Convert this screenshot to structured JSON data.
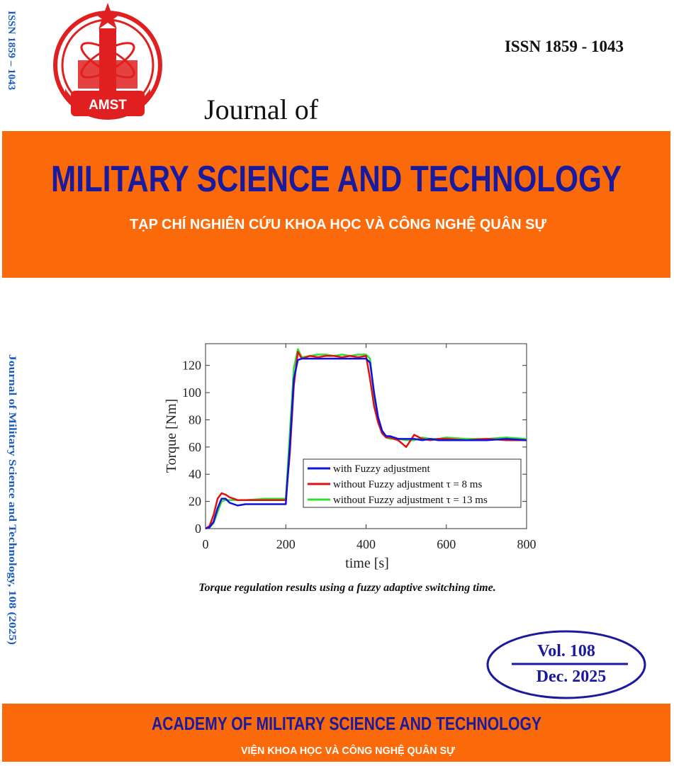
{
  "cover": {
    "issn": "ISSN 1859 - 1043",
    "side_issn": "ISSN  1859 – 1043",
    "logo": "AMST",
    "journal_of": "Journal of",
    "title": "MILITARY SCIENCE AND TECHNOLOGY",
    "subtitle": "TẠP CHÍ NGHIÊN CỨU KHOA HỌC VÀ CÔNG NGHỆ QUÂN SỰ",
    "side_citation": "Journal of Military Science and Technology, 108 (2025)",
    "caption": "Torque regulation results using a fuzzy adaptive switching time.",
    "volume": "Vol. 108",
    "date": "Dec. 2025",
    "publisher": "ACADEMY OF MILITARY SCIENCE AND TECHNOLOGY",
    "publisher_vn": "VIỆN KHOA HỌC VÀ CÔNG NGHỆ QUÂN SỰ"
  },
  "chart_data": {
    "type": "line",
    "x_label": "time [s]",
    "y_label": "Torque [Nm]",
    "x": [
      0,
      10,
      20,
      30,
      40,
      50,
      60,
      80,
      100,
      150,
      200,
      210,
      220,
      230,
      240,
      260,
      280,
      300,
      320,
      340,
      360,
      380,
      400,
      410,
      420,
      430,
      440,
      450,
      460,
      480,
      500,
      520,
      540,
      560,
      580,
      600,
      650,
      700,
      750,
      800
    ],
    "series": [
      {
        "name": "with Fuzzy adjustment",
        "color": "#1010e0",
        "values": [
          0,
          1,
          5,
          15,
          22,
          22,
          19,
          17,
          18,
          18,
          18,
          60,
          110,
          124,
          125,
          125,
          125,
          125,
          125,
          125,
          125,
          125,
          125,
          122,
          100,
          82,
          72,
          68,
          68,
          66,
          66,
          66,
          65,
          66,
          65,
          65,
          65,
          65,
          66,
          65
        ]
      },
      {
        "name": "without Fuzzy adjustment τ = 8 ms",
        "color": "#e01010",
        "values": [
          0,
          2,
          10,
          22,
          26,
          25,
          23,
          21,
          21,
          21,
          21,
          55,
          105,
          130,
          125,
          127,
          126,
          127,
          127,
          126,
          127,
          126,
          127,
          110,
          90,
          78,
          70,
          67,
          67,
          65,
          60,
          69,
          66,
          65,
          66,
          66,
          65,
          66,
          65,
          65
        ]
      },
      {
        "name": "without Fuzzy adjustment τ = 13 ms",
        "color": "#30e030",
        "values": [
          0,
          1,
          4,
          12,
          20,
          21,
          21,
          21,
          21,
          22,
          22,
          70,
          118,
          132,
          126,
          127,
          128,
          128,
          127,
          128,
          127,
          128,
          128,
          125,
          98,
          80,
          72,
          67,
          66,
          66,
          65,
          65,
          67,
          66,
          66,
          67,
          66,
          66,
          67,
          66
        ]
      }
    ],
    "xlim": [
      0,
      800
    ],
    "ylim": [
      0,
      136
    ],
    "xticks": [
      0,
      200,
      400,
      600,
      800
    ],
    "yticks": [
      0,
      20,
      40,
      60,
      80,
      100,
      120
    ]
  }
}
